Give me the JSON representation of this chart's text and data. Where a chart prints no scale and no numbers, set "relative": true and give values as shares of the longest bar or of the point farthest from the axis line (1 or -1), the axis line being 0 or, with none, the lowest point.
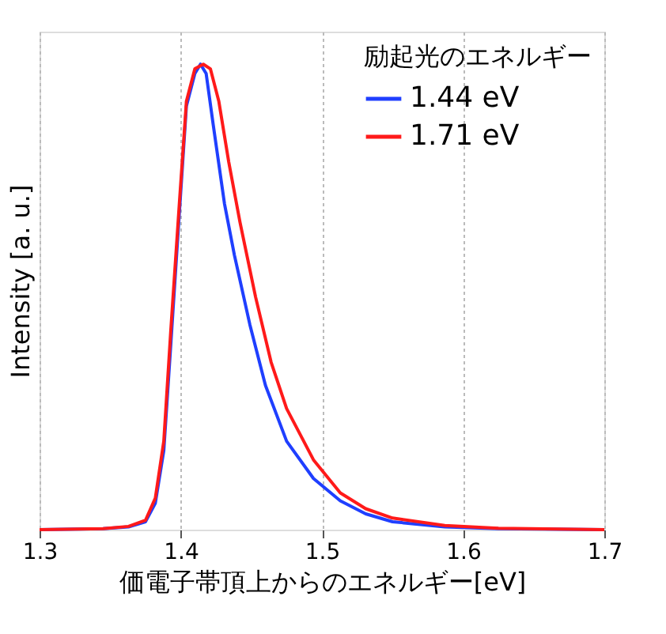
{
  "chart_data": {
    "type": "line",
    "relative": true,
    "xlabel": "価電子帯頂上からのエネルギー[eV]",
    "ylabel": "Intensity [a. u.]",
    "legend_title": "励起光のエネルギー",
    "legend": "top right",
    "grid": "x",
    "xlim": [
      1.3,
      1.7
    ],
    "xticks": [
      1.3,
      1.4,
      1.5,
      1.6,
      1.7
    ],
    "series": [
      {
        "name": "1.44 eV",
        "color": "#1f3fff",
        "x": [
          1.3,
          1.345,
          1.363,
          1.375,
          1.382,
          1.388,
          1.393,
          1.399,
          1.404,
          1.41,
          1.414,
          1.418,
          1.423,
          1.431,
          1.438,
          1.449,
          1.46,
          1.475,
          1.494,
          1.513,
          1.531,
          1.55,
          1.587,
          1.625,
          1.7
        ],
        "values": [
          0,
          0.002,
          0.006,
          0.017,
          0.057,
          0.17,
          0.4,
          0.68,
          0.91,
          0.98,
          1.0,
          0.98,
          0.87,
          0.7,
          0.59,
          0.44,
          0.31,
          0.19,
          0.11,
          0.062,
          0.034,
          0.017,
          0.006,
          0.002,
          0
        ]
      },
      {
        "name": "1.71 eV",
        "color": "#ff1a1a",
        "x": [
          1.3,
          1.345,
          1.363,
          1.375,
          1.382,
          1.388,
          1.393,
          1.399,
          1.404,
          1.41,
          1.416,
          1.421,
          1.427,
          1.434,
          1.442,
          1.453,
          1.464,
          1.475,
          1.494,
          1.513,
          1.531,
          1.55,
          1.587,
          1.625,
          1.7
        ],
        "values": [
          0,
          0.002,
          0.007,
          0.02,
          0.068,
          0.19,
          0.43,
          0.7,
          0.92,
          0.99,
          1.0,
          0.99,
          0.92,
          0.79,
          0.66,
          0.5,
          0.36,
          0.26,
          0.15,
          0.079,
          0.045,
          0.025,
          0.009,
          0.003,
          0
        ]
      }
    ]
  }
}
